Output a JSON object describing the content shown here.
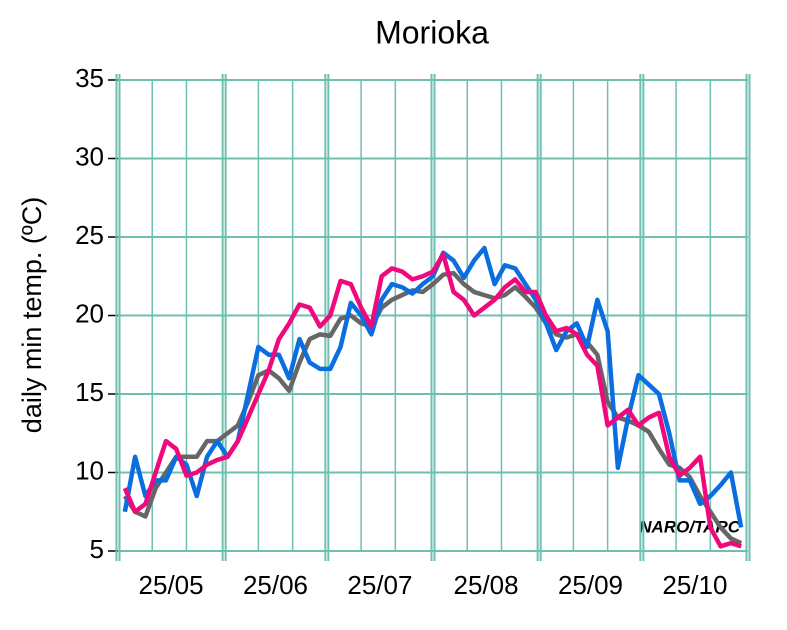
{
  "chart_data": {
    "type": "line",
    "title": "Morioka",
    "ylabel": "daily min temp. (ºC)",
    "annotation": "NARO/TARC",
    "xlim": [
      0,
      184
    ],
    "ylim": [
      5,
      35
    ],
    "yticks": [
      5,
      10,
      15,
      20,
      25,
      30,
      35
    ],
    "xticks": [
      {
        "value": 15.5,
        "label": "25/05"
      },
      {
        "value": 46,
        "label": "25/06"
      },
      {
        "value": 76.5,
        "label": "25/07"
      },
      {
        "value": 107.5,
        "label": "25/08"
      },
      {
        "value": 138,
        "label": "25/09"
      },
      {
        "value": 168.5,
        "label": "25/10"
      }
    ],
    "xgrid_major": [
      0,
      31,
      61,
      92,
      123,
      153,
      184
    ],
    "xgrid": [
      10,
      20,
      41,
      51,
      71,
      81,
      102,
      112,
      133,
      143,
      163,
      173
    ],
    "grid": true,
    "grid_color": "#6fbfb0",
    "x": [
      2,
      5,
      8,
      11,
      14,
      17,
      20,
      23,
      26,
      29,
      32,
      35,
      38,
      41,
      44,
      47,
      50,
      53,
      56,
      59,
      62,
      65,
      68,
      71,
      74,
      77,
      80,
      83,
      86,
      89,
      92,
      95,
      98,
      101,
      104,
      107,
      110,
      113,
      116,
      119,
      122,
      125,
      128,
      131,
      134,
      137,
      140,
      143,
      146,
      149,
      152,
      155,
      158,
      161,
      164,
      167,
      170,
      173,
      176,
      179,
      182
    ],
    "series": [
      {
        "color": "#666666",
        "values": [
          8.5,
          7.5,
          7.2,
          9,
          10,
          11,
          11,
          11,
          12,
          12,
          12.5,
          13,
          14.5,
          16.2,
          16.5,
          16,
          15.2,
          17,
          18.5,
          18.8,
          18.7,
          19.8,
          20,
          19.5,
          19.3,
          20.5,
          21,
          21.3,
          21.6,
          21.5,
          22,
          22.6,
          22.7,
          22,
          21.5,
          21.3,
          21.1,
          21.3,
          21.8,
          21.2,
          20.5,
          19.5,
          18.8,
          18.6,
          18.8,
          18.3,
          17.5,
          14.5,
          13.5,
          13.3,
          13,
          12.6,
          11.5,
          10.5,
          10.3,
          9.7,
          8.5,
          7.5,
          6.5,
          5.8,
          5.5
        ]
      },
      {
        "color": "#0a6ee0",
        "values": [
          7.5,
          11,
          8.5,
          9.5,
          9.5,
          11,
          10.5,
          8.5,
          11,
          12,
          11,
          12,
          15,
          18,
          17.5,
          17.5,
          16,
          18.5,
          17,
          16.6,
          16.6,
          18,
          20.8,
          20,
          18.8,
          21,
          22,
          21.8,
          21.4,
          22,
          22.5,
          24,
          23.5,
          22.4,
          23.5,
          24.3,
          22,
          23.2,
          23,
          22,
          21,
          19.5,
          17.8,
          19,
          19.5,
          18,
          21,
          19,
          10.3,
          13.5,
          16.2,
          15.6,
          15,
          12.5,
          9.5,
          9.5,
          8,
          8.5,
          9.2,
          10,
          6.5
        ]
      },
      {
        "color": "#f0087d",
        "values": [
          9,
          7.5,
          8,
          10,
          12,
          11.5,
          9.8,
          10,
          10.5,
          10.8,
          11,
          12,
          13.5,
          15,
          16.5,
          18.5,
          19.5,
          20.7,
          20.5,
          19.3,
          20,
          22.2,
          22,
          20.5,
          19.3,
          22.5,
          23,
          22.8,
          22.3,
          22.5,
          22.8,
          23.9,
          21.5,
          21,
          20,
          20.5,
          21,
          21.8,
          22.3,
          21.5,
          21.5,
          20,
          19,
          19.2,
          18.8,
          17.5,
          16.8,
          13,
          13.5,
          14,
          13,
          13.5,
          13.8,
          11,
          9.8,
          10.3,
          11,
          6.5,
          5.3,
          5.5,
          5.3
        ]
      }
    ]
  }
}
